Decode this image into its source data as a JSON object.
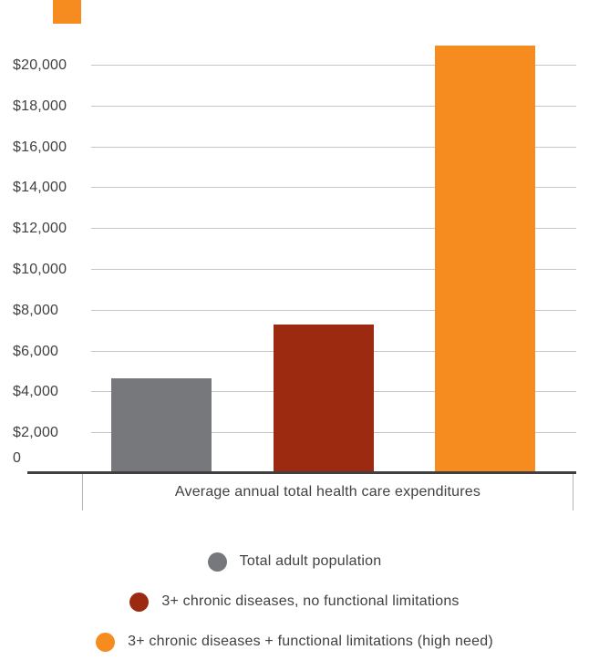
{
  "decoration": {
    "color": "#f68b1f"
  },
  "chart_data": {
    "type": "bar",
    "title": "",
    "xlabel": "Average annual total health care expenditures",
    "ylabel": "",
    "ylim": [
      0,
      20000
    ],
    "grid": true,
    "legend_position": "bottom",
    "axis_color": "#403f41",
    "gridline_color": "#c6c6c8",
    "yticks": [
      {
        "value": 0,
        "label": "0"
      },
      {
        "value": 2000,
        "label": "$2,000"
      },
      {
        "value": 4000,
        "label": "$4,000"
      },
      {
        "value": 6000,
        "label": "$6,000"
      },
      {
        "value": 8000,
        "label": "$8,000"
      },
      {
        "value": 10000,
        "label": "$10,000"
      },
      {
        "value": 12000,
        "label": "$12,000"
      },
      {
        "value": 14000,
        "label": "$14,000"
      },
      {
        "value": 16000,
        "label": "$16,000"
      },
      {
        "value": 18000,
        "label": "$18,000"
      },
      {
        "value": 20000,
        "label": "$20,000"
      }
    ],
    "bars": [
      {
        "label": "Total adult population",
        "value": 4700,
        "color": "#77787b"
      },
      {
        "label": "3+ chronic diseases, no functional limitations",
        "value": 7300,
        "color": "#9c2a10"
      },
      {
        "label": "3+ chronic diseases + functional limitations (high need)",
        "value": 21000,
        "color": "#f68b1f"
      }
    ]
  }
}
